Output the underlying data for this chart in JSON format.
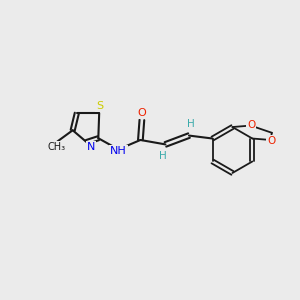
{
  "background_color": "#ebebeb",
  "bond_color": "#1a1a1a",
  "colors": {
    "S": "#cccc00",
    "N": "#0000ee",
    "O": "#ee2200",
    "C": "#1a1a1a",
    "H": "#3aabab"
  },
  "figsize": [
    3.0,
    3.0
  ],
  "dpi": 100
}
